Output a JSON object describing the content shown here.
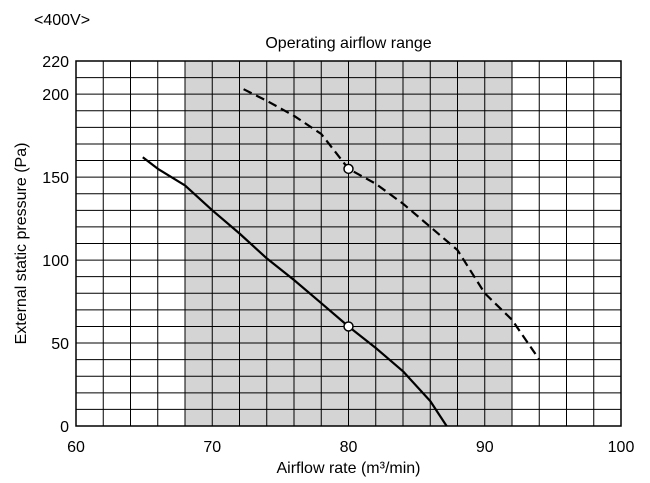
{
  "chart_data": {
    "type": "line",
    "title": "<400V>",
    "band_label": "Operating airflow range",
    "xlabel": "Airflow rate (m³/min)",
    "ylabel": "External static pressure (Pa)",
    "xlim": [
      60,
      100
    ],
    "ylim": [
      0,
      220
    ],
    "x_ticks": [
      60,
      70,
      80,
      90,
      100
    ],
    "y_ticks": [
      0,
      50,
      100,
      150,
      200,
      220
    ],
    "x_minor_step": 2,
    "y_minor_step": 10,
    "grid": true,
    "operating_range": [
      68,
      92
    ],
    "series": [
      {
        "style": "dashed",
        "points": [
          [
            72.3,
            203
          ],
          [
            74,
            196
          ],
          [
            76,
            187
          ],
          [
            78,
            176
          ],
          [
            80,
            155
          ],
          [
            82,
            146
          ],
          [
            84,
            134
          ],
          [
            86,
            120
          ],
          [
            88,
            106
          ],
          [
            90,
            80
          ],
          [
            92,
            64
          ],
          [
            94,
            40
          ]
        ],
        "marker": [
          80,
          155
        ]
      },
      {
        "style": "solid",
        "points": [
          [
            64.9,
            162
          ],
          [
            66,
            155
          ],
          [
            68,
            145
          ],
          [
            70,
            130
          ],
          [
            72,
            116
          ],
          [
            74,
            101
          ],
          [
            76,
            88
          ],
          [
            78,
            74
          ],
          [
            80,
            60
          ],
          [
            82,
            47
          ],
          [
            84,
            33
          ],
          [
            86,
            15
          ],
          [
            87.2,
            0
          ]
        ],
        "marker": [
          80,
          60
        ]
      }
    ]
  }
}
